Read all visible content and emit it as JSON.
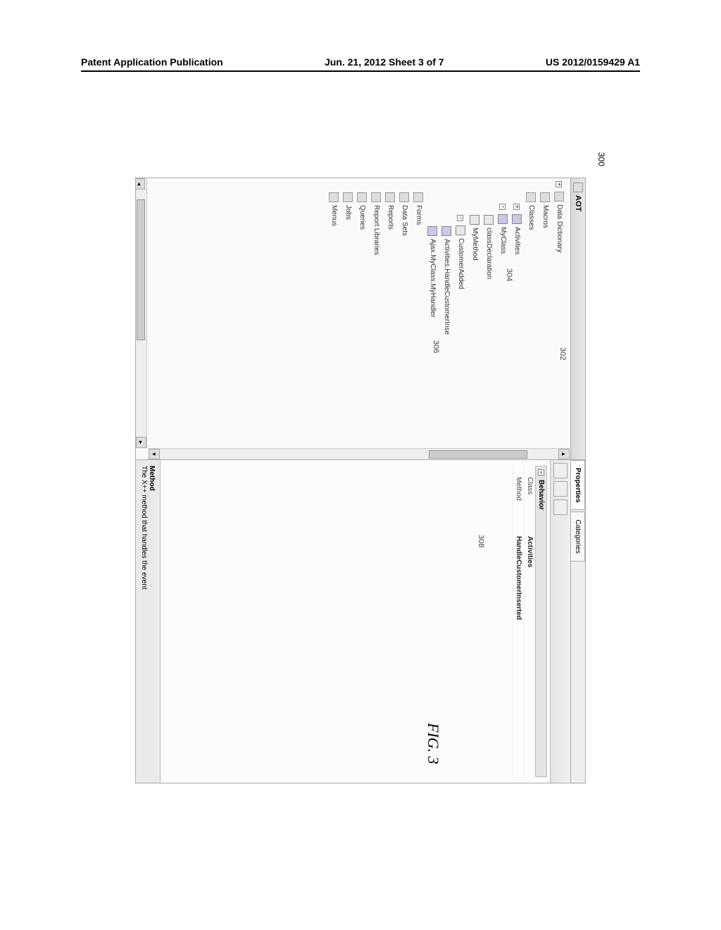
{
  "header": {
    "left": "Patent Application Publication",
    "center": "Jun. 21, 2012  Sheet 3 of 7",
    "right": "US 2012/0159429 A1"
  },
  "figure": {
    "caption": "FIG. 3",
    "callouts": {
      "c300": "300",
      "c302": "302",
      "c304": "304",
      "c306": "306",
      "c308": "308"
    },
    "left_panel": {
      "title": "AOT",
      "tree": {
        "data_dictionary": "Data Dictionary",
        "macros": "Macros",
        "classes": "Classes",
        "activities": "Activities",
        "myclass": "MyClass",
        "class_declaration": "classDeclaration",
        "mymethod": "MyMethod",
        "customeradded": "CustomerAdded",
        "handler1": "Activities.HandleCustomerInse",
        "handler2": "Ajax.MyClass.MyHandler",
        "forms": "Forms",
        "data_sets": "Data Sets",
        "reports": "Reports",
        "report_libraries": "Report Libraries",
        "queries": "Queries",
        "jobs": "Jobs",
        "menus": "Menus"
      }
    },
    "right_panel": {
      "tabs": {
        "properties": "Properties",
        "categories": "Categories"
      },
      "section": "Behavior",
      "rows": {
        "class": {
          "key": "Class",
          "val": "Activities"
        },
        "method": {
          "key": "Method",
          "val": "HandleCustomerInserted"
        }
      },
      "footer": {
        "title": "Method",
        "desc": "The X++ method that handles the event"
      }
    }
  }
}
